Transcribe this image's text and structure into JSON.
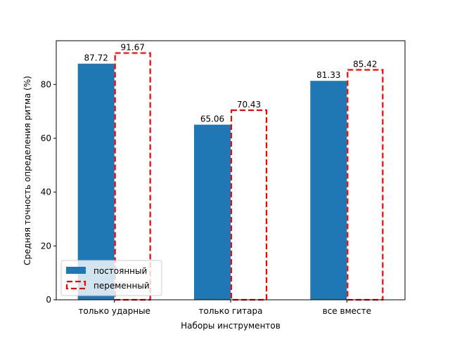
{
  "chart_data": {
    "type": "bar",
    "title": "",
    "xlabel": "Наборы инструментов",
    "ylabel": "Средняя точность определения ритма (%)",
    "categories": [
      "только ударные",
      "только гитара",
      "все вместе"
    ],
    "series": [
      {
        "name": "постоянный",
        "values": [
          87.72,
          65.06,
          81.33
        ],
        "style": "filled",
        "color": "#1f77b4"
      },
      {
        "name": "переменный",
        "values": [
          91.67,
          70.43,
          85.42
        ],
        "style": "dashed-outline",
        "color": "#ff0000"
      }
    ],
    "ylim": [
      0,
      96.25
    ],
    "yticks": [
      0,
      20,
      40,
      60,
      80
    ],
    "grid": false,
    "legend_position": "lower-left"
  }
}
